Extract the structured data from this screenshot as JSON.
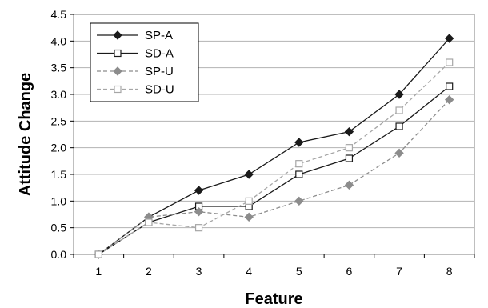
{
  "chart_data": {
    "type": "line",
    "xlabel": "Feature",
    "ylabel": "Attitude Change",
    "x": [
      1,
      2,
      3,
      4,
      5,
      6,
      7,
      8
    ],
    "x_tick_labels": [
      "1",
      "2",
      "3",
      "4",
      "5",
      "6",
      "7",
      "8"
    ],
    "y_tick_labels": [
      "0.0",
      "0.5",
      "1.0",
      "1.5",
      "2.0",
      "2.5",
      "3.0",
      "3.5",
      "4.0",
      "4.5"
    ],
    "ylim": [
      0,
      4.5
    ],
    "y_step": 0.5,
    "grid": "horizontal",
    "legend_position": "top-left",
    "series": [
      {
        "name": "SP-A",
        "values": [
          0.0,
          0.7,
          1.2,
          1.5,
          2.1,
          2.3,
          3.0,
          4.05
        ],
        "color": "#1a1a1a",
        "line_style": "solid",
        "marker": "filled-diamond"
      },
      {
        "name": "SD-A",
        "values": [
          0.0,
          0.6,
          0.9,
          0.9,
          1.5,
          1.8,
          2.4,
          3.15
        ],
        "color": "#1a1a1a",
        "line_style": "solid",
        "marker": "open-square"
      },
      {
        "name": "SP-U",
        "values": [
          0.0,
          0.7,
          0.8,
          0.7,
          1.0,
          1.3,
          1.9,
          2.9
        ],
        "color": "#8c8c8c",
        "line_style": "dashed",
        "marker": "filled-diamond"
      },
      {
        "name": "SD-U",
        "values": [
          0.0,
          0.6,
          0.5,
          1.0,
          1.7,
          2.0,
          2.7,
          3.6
        ],
        "color": "#a6a6a6",
        "line_style": "dashed",
        "marker": "open-square"
      }
    ]
  }
}
